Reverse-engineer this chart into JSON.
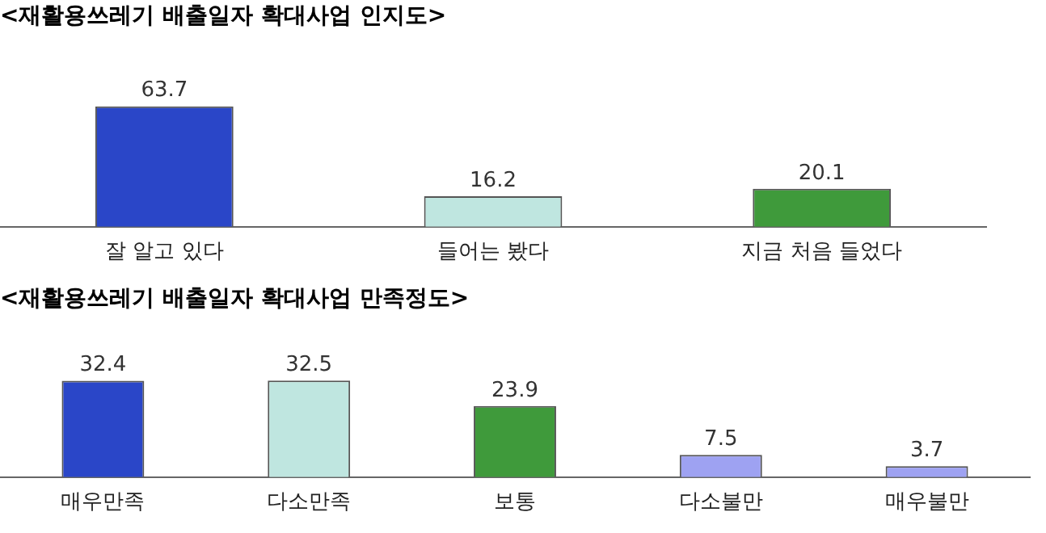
{
  "chart_data": [
    {
      "type": "bar",
      "title": "<재활용쓰레기 배출일자 확대사업 인지도>",
      "categories": [
        "잘 알고 있다",
        "들어는 봤다",
        "지금 처음 들었다"
      ],
      "values": [
        63.7,
        16.2,
        20.1
      ],
      "colors": [
        "#2a46c8",
        "#bfe6e0",
        "#3f9a3b"
      ],
      "data_labels": true,
      "grid": false,
      "legend": false,
      "tick_labels": "x"
    },
    {
      "type": "bar",
      "title": "<재활용쓰레기 배출일자 확대사업 만족정도>",
      "categories": [
        "매우만족",
        "다소만족",
        "보통",
        "다소불만",
        "매우불만"
      ],
      "values": [
        32.4,
        32.5,
        23.9,
        7.5,
        3.7
      ],
      "colors": [
        "#2a46c8",
        "#bfe6e0",
        "#3f9a3b",
        "#9ea2f2",
        "#9ea2f2"
      ],
      "data_labels": true,
      "grid": false,
      "legend": false,
      "tick_labels": "x"
    }
  ]
}
